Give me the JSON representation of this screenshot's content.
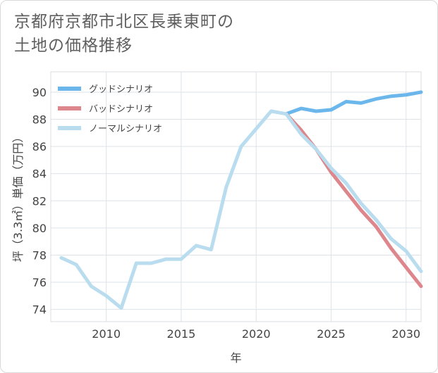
{
  "title_lines": [
    "京都府京都市北区長乗東町の",
    "土地の価格推移"
  ],
  "chart_data": {
    "type": "line",
    "xlabel": "年",
    "ylabel": "坪（3.3㎡）単価（万円）",
    "xlim": [
      2006.3,
      2031
    ],
    "ylim": [
      73.1,
      91.5
    ],
    "xticks": [
      2010,
      2015,
      2020,
      2025,
      2030
    ],
    "yticks": [
      74,
      76,
      78,
      80,
      82,
      84,
      86,
      88,
      90
    ],
    "grid": true,
    "legend_position": "top-left",
    "series": [
      {
        "name": "グッドシナリオ",
        "color": "#6bb7ec",
        "x": [
          2022,
          2023,
          2024,
          2025,
          2026,
          2027,
          2028,
          2029,
          2030,
          2031
        ],
        "y": [
          88.4,
          88.8,
          88.6,
          88.7,
          89.3,
          89.2,
          89.5,
          89.7,
          89.8,
          90.0
        ]
      },
      {
        "name": "バッドシナリオ",
        "color": "#dd868c",
        "x": [
          2022,
          2023,
          2024,
          2025,
          2026,
          2027,
          2028,
          2029,
          2030,
          2031
        ],
        "y": [
          88.4,
          87.2,
          85.8,
          84.1,
          82.7,
          81.3,
          80.1,
          78.5,
          77.1,
          75.7
        ]
      },
      {
        "name": "ノーマルシナリオ",
        "color": "#b9ddee",
        "x": [
          2007,
          2008,
          2009,
          2010,
          2011,
          2012,
          2013,
          2014,
          2015,
          2016,
          2017,
          2018,
          2019,
          2020,
          2021,
          2022,
          2023,
          2024,
          2025,
          2026,
          2027,
          2028,
          2029,
          2030,
          2031
        ],
        "y": [
          77.8,
          77.3,
          75.7,
          75.0,
          74.1,
          77.4,
          77.4,
          77.7,
          77.7,
          78.7,
          78.4,
          83.0,
          86.0,
          87.3,
          88.6,
          88.4,
          86.9,
          85.8,
          84.4,
          83.3,
          81.8,
          80.6,
          79.2,
          78.3,
          76.8
        ]
      }
    ]
  }
}
